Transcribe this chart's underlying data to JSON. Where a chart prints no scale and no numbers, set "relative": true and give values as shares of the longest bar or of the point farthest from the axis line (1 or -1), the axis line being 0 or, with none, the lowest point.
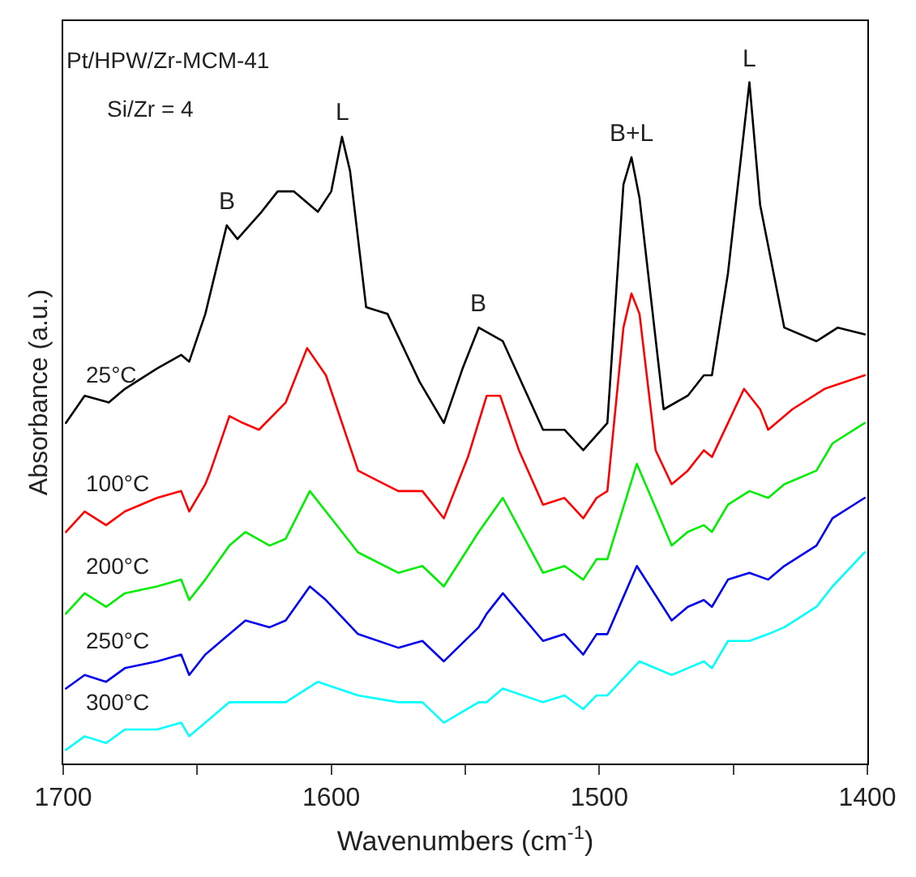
{
  "chart_data": {
    "type": "line",
    "relative": true,
    "xlabel": "Wavenumbers (cm$^{-1}$)",
    "ylabel": "Absorbance (a.u.)",
    "xlim": [
      1700,
      1400
    ],
    "xticks": [
      1700,
      {
        "value": 1650,
        "label": null
      },
      1600,
      {
        "value": 1550,
        "label": null
      },
      1500,
      {
        "value": 1450,
        "label": null
      },
      1400
    ],
    "legend": false,
    "line_style": "solid",
    "annotations": [
      "Pt/HPW/Zr-MCM-41",
      "Si/Zr = 4",
      {
        "text": "B",
        "x": 1639,
        "y": 0.79
      },
      {
        "text": "L",
        "x": 1596,
        "y": 0.92
      },
      {
        "text": "B",
        "x": 1545,
        "y": 0.64
      },
      {
        "text": "B+L",
        "x": 1488,
        "y": 0.89
      },
      {
        "text": "L",
        "x": 1444,
        "y": 1.0
      }
    ],
    "series": [
      {
        "name": "25°C",
        "color": "#000000",
        "x": [
          1699,
          1692,
          1683,
          1677,
          1665,
          1656,
          1653,
          1647,
          1639,
          1635,
          1626,
          1620,
          1617,
          1614,
          1605,
          1600,
          1596,
          1593,
          1587,
          1579,
          1567,
          1558,
          1551,
          1545,
          1536,
          1521,
          1513,
          1506,
          1497,
          1491,
          1488,
          1485,
          1476,
          1467,
          1461,
          1458,
          1452,
          1444,
          1440,
          1431,
          1419,
          1411,
          1401
        ],
        "values": [
          0.5,
          0.54,
          0.53,
          0.55,
          0.58,
          0.6,
          0.59,
          0.66,
          0.79,
          0.77,
          0.81,
          0.84,
          0.84,
          0.84,
          0.81,
          0.84,
          0.92,
          0.87,
          0.67,
          0.66,
          0.56,
          0.5,
          0.58,
          0.64,
          0.62,
          0.49,
          0.49,
          0.46,
          0.5,
          0.85,
          0.89,
          0.83,
          0.52,
          0.54,
          0.57,
          0.57,
          0.72,
          1.0,
          0.82,
          0.64,
          0.62,
          0.64,
          0.63
        ]
      },
      {
        "name": "100°C",
        "color": "#ff0000",
        "x": [
          1699,
          1692,
          1684,
          1677,
          1665,
          1656,
          1653,
          1647,
          1645,
          1638,
          1633,
          1627,
          1617,
          1609,
          1602,
          1590,
          1585,
          1575,
          1566,
          1558,
          1549,
          1542,
          1537,
          1530,
          1521,
          1513,
          1506,
          1501,
          1497,
          1491,
          1488,
          1485,
          1479,
          1473,
          1467,
          1461,
          1458,
          1452,
          1446,
          1440,
          1437,
          1428,
          1416,
          1401
        ],
        "values": [
          0.34,
          0.37,
          0.35,
          0.37,
          0.39,
          0.4,
          0.37,
          0.41,
          0.43,
          0.51,
          0.5,
          0.49,
          0.53,
          0.61,
          0.57,
          0.43,
          0.42,
          0.4,
          0.4,
          0.36,
          0.45,
          0.54,
          0.54,
          0.46,
          0.38,
          0.39,
          0.36,
          0.39,
          0.4,
          0.64,
          0.69,
          0.66,
          0.46,
          0.41,
          0.43,
          0.46,
          0.45,
          0.5,
          0.55,
          0.52,
          0.49,
          0.52,
          0.55,
          0.57
        ]
      },
      {
        "name": "200°C",
        "color": "#00ee00",
        "x": [
          1699,
          1692,
          1684,
          1677,
          1665,
          1656,
          1653,
          1647,
          1638,
          1632,
          1623,
          1617,
          1608,
          1602,
          1590,
          1575,
          1566,
          1558,
          1545,
          1536,
          1521,
          1513,
          1506,
          1501,
          1497,
          1486,
          1473,
          1467,
          1461,
          1458,
          1452,
          1444,
          1437,
          1431,
          1419,
          1413,
          1401
        ],
        "values": [
          0.22,
          0.25,
          0.23,
          0.25,
          0.26,
          0.27,
          0.24,
          0.27,
          0.32,
          0.34,
          0.32,
          0.33,
          0.4,
          0.37,
          0.31,
          0.28,
          0.29,
          0.26,
          0.34,
          0.39,
          0.28,
          0.29,
          0.27,
          0.3,
          0.3,
          0.44,
          0.32,
          0.34,
          0.35,
          0.34,
          0.38,
          0.4,
          0.39,
          0.41,
          0.43,
          0.47,
          0.5
        ]
      },
      {
        "name": "250°C",
        "color": "#0000ee",
        "x": [
          1699,
          1692,
          1684,
          1677,
          1665,
          1656,
          1653,
          1647,
          1638,
          1632,
          1623,
          1617,
          1608,
          1602,
          1590,
          1575,
          1566,
          1558,
          1545,
          1542,
          1536,
          1521,
          1513,
          1506,
          1501,
          1497,
          1486,
          1473,
          1467,
          1461,
          1458,
          1452,
          1444,
          1437,
          1431,
          1419,
          1413,
          1401
        ],
        "values": [
          0.11,
          0.13,
          0.12,
          0.14,
          0.15,
          0.16,
          0.13,
          0.16,
          0.19,
          0.21,
          0.2,
          0.21,
          0.26,
          0.24,
          0.19,
          0.17,
          0.18,
          0.15,
          0.2,
          0.22,
          0.25,
          0.18,
          0.19,
          0.16,
          0.19,
          0.19,
          0.29,
          0.21,
          0.23,
          0.24,
          0.23,
          0.27,
          0.28,
          0.27,
          0.29,
          0.32,
          0.36,
          0.39
        ]
      },
      {
        "name": "300°C",
        "color": "#00ffff",
        "x": [
          1699,
          1692,
          1684,
          1677,
          1665,
          1656,
          1653,
          1647,
          1638,
          1632,
          1623,
          1617,
          1605,
          1590,
          1575,
          1566,
          1558,
          1545,
          1542,
          1536,
          1521,
          1513,
          1506,
          1501,
          1497,
          1485,
          1473,
          1467,
          1461,
          1458,
          1452,
          1444,
          1437,
          1431,
          1419,
          1413,
          1401
        ],
        "values": [
          0.02,
          0.04,
          0.03,
          0.05,
          0.05,
          0.06,
          0.04,
          0.06,
          0.09,
          0.09,
          0.09,
          0.09,
          0.12,
          0.1,
          0.09,
          0.09,
          0.06,
          0.09,
          0.09,
          0.11,
          0.09,
          0.1,
          0.08,
          0.1,
          0.1,
          0.15,
          0.13,
          0.14,
          0.15,
          0.14,
          0.18,
          0.18,
          0.19,
          0.2,
          0.23,
          0.26,
          0.31
        ]
      }
    ]
  }
}
